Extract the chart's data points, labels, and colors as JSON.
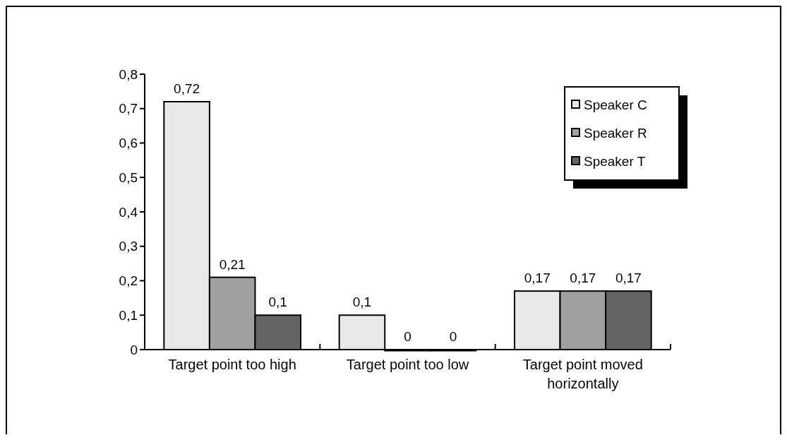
{
  "chart_data": {
    "type": "bar",
    "categories": [
      "Target point too high",
      "Target point too low",
      "Target point moved horizontally"
    ],
    "series": [
      {
        "name": "Speaker C",
        "color": "#e8e8e8",
        "values": [
          0.72,
          0.1,
          0.17
        ],
        "value_labels": [
          "0,72",
          "0,1",
          "0,17"
        ]
      },
      {
        "name": "Speaker R",
        "color": "#a0a0a0",
        "values": [
          0.21,
          0,
          0.17
        ],
        "value_labels": [
          "0,21",
          "0",
          "0,17"
        ]
      },
      {
        "name": "Speaker T",
        "color": "#646464",
        "values": [
          0.1,
          0,
          0.17
        ],
        "value_labels": [
          "0,1",
          "0",
          "0,17"
        ]
      }
    ],
    "ylim": [
      0,
      0.8
    ],
    "yticks": [
      0,
      {
        "value": 0.1,
        "label": "0,1"
      },
      {
        "value": 0.2,
        "label": "0,2"
      },
      {
        "value": 0.3,
        "label": "0,3"
      },
      {
        "value": 0.4,
        "label": "0,4"
      },
      {
        "value": 0.5,
        "label": "0,5"
      },
      {
        "value": 0.6,
        "label": "0,6"
      },
      {
        "value": 0.7,
        "label": "0,7"
      },
      {
        "value": 0.8,
        "label": "0,8"
      }
    ],
    "legend": "top right"
  }
}
